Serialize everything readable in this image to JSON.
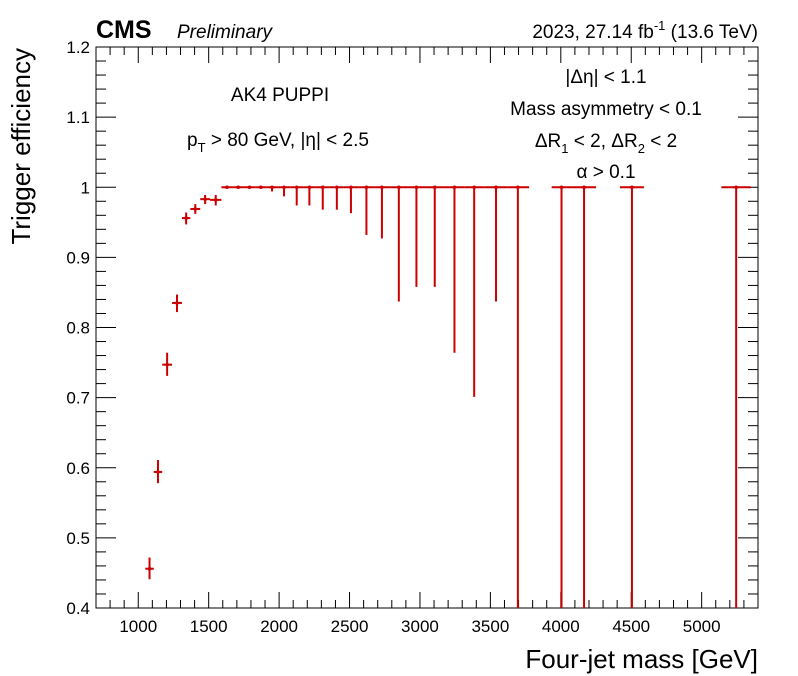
{
  "header": {
    "experiment": "CMS",
    "status": "Preliminary",
    "lumi_prefix": "2023, 27.14 fb",
    "lumi_exp": "-1",
    "energy": " (13.6 TeV)"
  },
  "annotations": {
    "jet_algo": "AK4 PUPPI",
    "pt_cut": {
      "p": "p",
      "sub": "T",
      "rest": " > 80 GeV, |η| < 2.5"
    },
    "deta_cut": "|Δη| < 1.1",
    "mass_asym": "Mass asymmetry < 0.1",
    "dr_cut": {
      "a": "ΔR",
      "a_sub": "1",
      "mid": " < 2, ΔR",
      "b_sub": "2",
      "end": " < 2"
    },
    "alpha_cut": "α > 0.1"
  },
  "colors": {
    "marker": "#cc0000",
    "axis": "#000000"
  },
  "chart_data": {
    "type": "scatter",
    "xlabel": "Four-jet mass [GeV]",
    "ylabel": "Trigger efficiency",
    "xlim": [
      700,
      5400
    ],
    "ylim": [
      0.4,
      1.2
    ],
    "xticks": [
      1000,
      1500,
      2000,
      2500,
      3000,
      3500,
      4000,
      4500,
      5000
    ],
    "yticks": [
      0.4,
      0.5,
      0.6,
      0.7,
      0.8,
      0.9,
      1,
      1.1,
      1.2
    ],
    "ytick_labels": [
      "0.4",
      "0.5",
      "0.6",
      "0.7",
      "0.8",
      "0.9",
      "1",
      "1.1",
      "1.2"
    ],
    "grid": false,
    "series": [
      {
        "points": [
          {
            "x": 1080,
            "xlo": 1050,
            "xhi": 1110,
            "y": 0.456,
            "ylo": 0.441,
            "yhi": 0.472
          },
          {
            "x": 1140,
            "xlo": 1110,
            "xhi": 1170,
            "y": 0.594,
            "ylo": 0.578,
            "yhi": 0.611
          },
          {
            "x": 1205,
            "xlo": 1170,
            "xhi": 1240,
            "y": 0.747,
            "ylo": 0.731,
            "yhi": 0.764
          },
          {
            "x": 1275,
            "xlo": 1240,
            "xhi": 1310,
            "y": 0.835,
            "ylo": 0.822,
            "yhi": 0.847
          },
          {
            "x": 1340,
            "xlo": 1310,
            "xhi": 1370,
            "y": 0.956,
            "ylo": 0.947,
            "yhi": 0.964
          },
          {
            "x": 1405,
            "xlo": 1370,
            "xhi": 1440,
            "y": 0.969,
            "ylo": 0.962,
            "yhi": 0.976
          },
          {
            "x": 1475,
            "xlo": 1440,
            "xhi": 1510,
            "y": 0.983,
            "ylo": 0.976,
            "yhi": 0.989
          },
          {
            "x": 1550,
            "xlo": 1510,
            "xhi": 1590,
            "y": 0.982,
            "ylo": 0.974,
            "yhi": 0.989
          },
          {
            "x": 1630,
            "xlo": 1590,
            "xhi": 1670,
            "y": 1.0,
            "ylo": 1.0,
            "yhi": 1.0
          },
          {
            "x": 1710,
            "xlo": 1670,
            "xhi": 1750,
            "y": 1.0,
            "ylo": 1.0,
            "yhi": 1.0
          },
          {
            "x": 1790,
            "xlo": 1750,
            "xhi": 1830,
            "y": 1.0,
            "ylo": 1.0,
            "yhi": 1.0
          },
          {
            "x": 1870,
            "xlo": 1830,
            "xhi": 1910,
            "y": 1.0,
            "ylo": 1.0,
            "yhi": 1.0
          },
          {
            "x": 1950,
            "xlo": 1910,
            "xhi": 1995,
            "y": 1.0,
            "ylo": 0.994,
            "yhi": 1.0
          },
          {
            "x": 2035,
            "xlo": 1995,
            "xhi": 2080,
            "y": 1.0,
            "ylo": 0.987,
            "yhi": 1.0
          },
          {
            "x": 2125,
            "xlo": 2080,
            "xhi": 2170,
            "y": 1.0,
            "ylo": 0.974,
            "yhi": 1.0
          },
          {
            "x": 2215,
            "xlo": 2170,
            "xhi": 2260,
            "y": 1.0,
            "ylo": 0.974,
            "yhi": 1.0
          },
          {
            "x": 2310,
            "xlo": 2260,
            "xhi": 2360,
            "y": 1.0,
            "ylo": 0.968,
            "yhi": 1.0
          },
          {
            "x": 2410,
            "xlo": 2360,
            "xhi": 2460,
            "y": 1.0,
            "ylo": 0.968,
            "yhi": 1.0
          },
          {
            "x": 2510,
            "xlo": 2460,
            "xhi": 2565,
            "y": 1.0,
            "ylo": 0.963,
            "yhi": 1.0
          },
          {
            "x": 2620,
            "xlo": 2565,
            "xhi": 2675,
            "y": 1.0,
            "ylo": 0.932,
            "yhi": 1.0
          },
          {
            "x": 2730,
            "xlo": 2675,
            "xhi": 2790,
            "y": 1.0,
            "ylo": 0.927,
            "yhi": 1.0
          },
          {
            "x": 2850,
            "xlo": 2790,
            "xhi": 2915,
            "y": 1.0,
            "ylo": 0.837,
            "yhi": 1.0
          },
          {
            "x": 2975,
            "xlo": 2915,
            "xhi": 3040,
            "y": 1.0,
            "ylo": 0.858,
            "yhi": 1.0
          },
          {
            "x": 3105,
            "xlo": 3040,
            "xhi": 3175,
            "y": 1.0,
            "ylo": 0.858,
            "yhi": 1.0
          },
          {
            "x": 3245,
            "xlo": 3175,
            "xhi": 3315,
            "y": 1.0,
            "ylo": 0.764,
            "yhi": 1.0
          },
          {
            "x": 3385,
            "xlo": 3315,
            "xhi": 3460,
            "y": 1.0,
            "ylo": 0.701,
            "yhi": 1.0
          },
          {
            "x": 3540,
            "xlo": 3460,
            "xhi": 3620,
            "y": 1.0,
            "ylo": 0.837,
            "yhi": 1.0
          },
          {
            "x": 3695,
            "xlo": 3620,
            "xhi": 3775,
            "y": 1.0,
            "ylo": 0.4,
            "yhi": 1.0
          },
          {
            "x": 4005,
            "xlo": 3935,
            "xhi": 4080,
            "y": 1.0,
            "ylo": 0.4,
            "yhi": 1.0
          },
          {
            "x": 4165,
            "xlo": 4080,
            "xhi": 4250,
            "y": 1.0,
            "ylo": 0.4,
            "yhi": 1.0
          },
          {
            "x": 4505,
            "xlo": 4420,
            "xhi": 4590,
            "y": 1.0,
            "ylo": 0.4,
            "yhi": 1.0
          },
          {
            "x": 5245,
            "xlo": 5140,
            "xhi": 5350,
            "y": 1.0,
            "ylo": 0.4,
            "yhi": 1.0
          }
        ]
      }
    ]
  }
}
